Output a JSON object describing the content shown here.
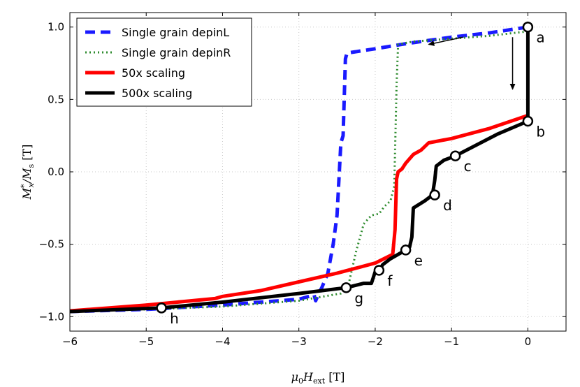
{
  "chart_data": {
    "type": "line",
    "xlabel": "μ0Hext [T]",
    "ylabel": "M*x/Ms [T]",
    "xlim": [
      -6,
      0.5
    ],
    "ylim": [
      -1.1,
      1.1
    ],
    "grid": true,
    "legend_position": "top-left",
    "x_ticks": [
      -6,
      -5,
      -4,
      -3,
      -2,
      -1,
      0
    ],
    "x_tick_labels": [
      "−6",
      "−5",
      "−4",
      "−3",
      "−2",
      "−1",
      "0"
    ],
    "y_ticks": [
      -1.0,
      -0.5,
      0.0,
      0.5,
      1.0
    ],
    "y_tick_labels": [
      "−1.0",
      "−0.5",
      "0.0",
      "0.5",
      "1.0"
    ],
    "series": [
      {
        "name": "Single grain depinL",
        "color": "#1a1aff",
        "style": "dashed",
        "points": [
          [
            0,
            1.0
          ],
          [
            -0.5,
            0.96
          ],
          [
            -1.0,
            0.93
          ],
          [
            -1.6,
            0.885
          ],
          [
            -2.0,
            0.85
          ],
          [
            -2.37,
            0.82
          ],
          [
            -2.39,
            0.78
          ],
          [
            -2.42,
            0.25
          ],
          [
            -2.45,
            0.2
          ],
          [
            -2.5,
            -0.3
          ],
          [
            -2.55,
            -0.5
          ],
          [
            -2.62,
            -0.7
          ],
          [
            -2.7,
            -0.8
          ],
          [
            -2.74,
            -0.84
          ],
          [
            -2.78,
            -0.89
          ],
          [
            -2.8,
            -0.85
          ],
          [
            -3.0,
            -0.88
          ],
          [
            -3.5,
            -0.9
          ],
          [
            -4.0,
            -0.92
          ],
          [
            -5.0,
            -0.95
          ],
          [
            -6.0,
            -0.965
          ]
        ]
      },
      {
        "name": "Single grain depinR",
        "color": "#2e8b2e",
        "style": "dotted",
        "points": [
          [
            0,
            0.97
          ],
          [
            -0.5,
            0.94
          ],
          [
            -1.0,
            0.92
          ],
          [
            -1.5,
            0.9
          ],
          [
            -1.7,
            0.88
          ],
          [
            -1.72,
            0.6
          ],
          [
            -1.75,
            -0.1
          ],
          [
            -1.8,
            -0.2
          ],
          [
            -1.88,
            -0.24
          ],
          [
            -1.95,
            -0.29
          ],
          [
            -2.05,
            -0.3
          ],
          [
            -2.15,
            -0.36
          ],
          [
            -2.25,
            -0.55
          ],
          [
            -2.35,
            -0.78
          ],
          [
            -2.45,
            -0.84
          ],
          [
            -3.0,
            -0.89
          ],
          [
            -4.0,
            -0.93
          ],
          [
            -5.0,
            -0.95
          ],
          [
            -6.0,
            -0.965
          ]
        ]
      },
      {
        "name": "50x scaling",
        "color": "#ff0000",
        "style": "solid",
        "points": [
          [
            0,
            0.39
          ],
          [
            -0.5,
            0.3
          ],
          [
            -1.0,
            0.23
          ],
          [
            -1.3,
            0.2
          ],
          [
            -1.4,
            0.15
          ],
          [
            -1.5,
            0.12
          ],
          [
            -1.6,
            0.06
          ],
          [
            -1.65,
            0.02
          ],
          [
            -1.7,
            0.0
          ],
          [
            -1.72,
            -0.05
          ],
          [
            -1.74,
            -0.4
          ],
          [
            -1.77,
            -0.57
          ],
          [
            -2.0,
            -0.63
          ],
          [
            -2.5,
            -0.7
          ],
          [
            -3.0,
            -0.76
          ],
          [
            -3.5,
            -0.82
          ],
          [
            -4.0,
            -0.86
          ],
          [
            -4.1,
            -0.875
          ],
          [
            -4.5,
            -0.895
          ],
          [
            -5.0,
            -0.92
          ],
          [
            -6.0,
            -0.96
          ]
        ]
      },
      {
        "name": "500x scaling",
        "color": "#000000",
        "style": "solid",
        "points": [
          [
            0,
            1.0
          ],
          [
            0,
            0.35
          ],
          [
            -0.4,
            0.26
          ],
          [
            -0.95,
            0.11
          ],
          [
            -1.1,
            0.08
          ],
          [
            -1.2,
            0.04
          ],
          [
            -1.22,
            -0.06
          ],
          [
            -1.25,
            -0.16
          ],
          [
            -1.35,
            -0.2
          ],
          [
            -1.5,
            -0.25
          ],
          [
            -1.52,
            -0.45
          ],
          [
            -1.55,
            -0.52
          ],
          [
            -1.6,
            -0.54
          ],
          [
            -1.8,
            -0.6
          ],
          [
            -1.9,
            -0.64
          ],
          [
            -1.95,
            -0.68
          ],
          [
            -2.0,
            -0.69
          ],
          [
            -2.05,
            -0.77
          ],
          [
            -2.1,
            -0.77
          ],
          [
            -2.15,
            -0.77
          ],
          [
            -2.38,
            -0.8
          ],
          [
            -3.0,
            -0.84
          ],
          [
            -4.0,
            -0.9
          ],
          [
            -4.8,
            -0.94
          ],
          [
            -6.0,
            -0.965
          ]
        ]
      }
    ],
    "marked_points": [
      {
        "label": "a",
        "x": 0,
        "y": 1.0,
        "label_pos": "right"
      },
      {
        "label": "b",
        "x": 0,
        "y": 0.35,
        "label_pos": "right"
      },
      {
        "label": "c",
        "x": -0.95,
        "y": 0.11,
        "label_pos": "right"
      },
      {
        "label": "d",
        "x": -1.22,
        "y": -0.16,
        "label_pos": "right"
      },
      {
        "label": "e",
        "x": -1.6,
        "y": -0.54,
        "label_pos": "right"
      },
      {
        "label": "f",
        "x": -1.95,
        "y": -0.68,
        "label_pos": "right"
      },
      {
        "label": "g",
        "x": -2.38,
        "y": -0.8,
        "label_pos": "right"
      },
      {
        "label": "h",
        "x": -4.8,
        "y": -0.94,
        "label_pos": "right"
      }
    ],
    "annotations": [
      {
        "type": "arrow",
        "direction": "left",
        "x_from": -0.85,
        "y_from": 0.93,
        "x_to": -1.3,
        "y_to": 0.88
      },
      {
        "type": "arrow",
        "direction": "down",
        "x_from": -0.2,
        "y_from": 0.93,
        "x_to": -0.2,
        "y_to": 0.57
      }
    ]
  }
}
